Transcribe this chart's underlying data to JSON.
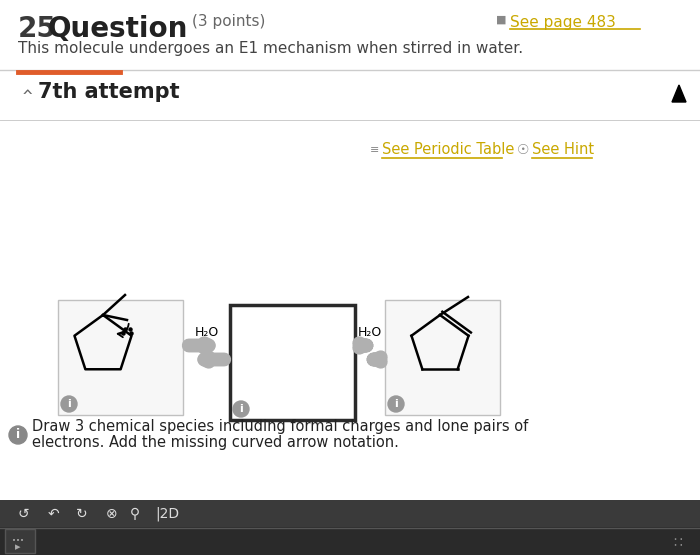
{
  "bg_color": "#ffffff",
  "question_number": "25",
  "question_title": "Question",
  "question_points": "(3 points)",
  "see_page_text": "See page 483",
  "description": "This molecule undergoes an E1 mechanism when stirred in water.",
  "attempt_label": "7th attempt",
  "see_periodic_table": "See Periodic Table",
  "see_hint": "See Hint",
  "h2o_label": "H₂O",
  "info_text1": "Draw 3 chemical species including formal charges and lone pairs of",
  "info_text2": "electrons. Add the missing curved arrow notation.",
  "orange_underline_color": "#e05c2a",
  "gold_underline_color": "#c9a800",
  "gray_text_color": "#666666",
  "dark_text_color": "#222222",
  "light_border_color": "#cccccc",
  "toolbar_bg": "#3a3a3a",
  "arrow_gray": "#b0b0b0"
}
